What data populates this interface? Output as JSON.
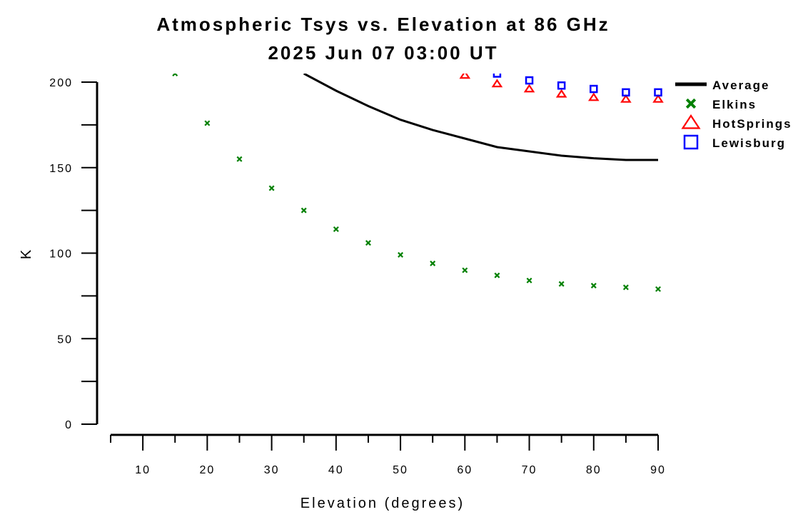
{
  "chart_data": {
    "type": "line",
    "title": "Atmospheric Tsys vs. Elevation at 86 GHz",
    "subtitle": "2025 Jun 07 03:00 UT",
    "xlabel": "Elevation (degrees)",
    "ylabel": "K",
    "xlim": [
      5,
      90
    ],
    "ylim": [
      0,
      200
    ],
    "x_ticks": [
      10,
      20,
      30,
      40,
      50,
      60,
      70,
      80,
      90
    ],
    "y_ticks": [
      0,
      50,
      100,
      150,
      200
    ],
    "grid": false,
    "legend_position": "right",
    "series": [
      {
        "name": "Average",
        "marker": "line",
        "color": "#000000",
        "x": [
          35,
          40,
          45,
          50,
          55,
          60,
          65,
          70,
          75,
          80,
          85,
          90
        ],
        "y": [
          205,
          195,
          186,
          178,
          172,
          167,
          162,
          159.5,
          157,
          155.5,
          154.5,
          154.5
        ]
      },
      {
        "name": "Elkins",
        "marker": "x",
        "color": "#008000",
        "x": [
          15,
          20,
          25,
          30,
          35,
          40,
          45,
          50,
          55,
          60,
          65,
          70,
          75,
          80,
          85,
          90
        ],
        "y": [
          205,
          176,
          155,
          138,
          125,
          114,
          106,
          99,
          94,
          90,
          87,
          84,
          82,
          81,
          80,
          79
        ]
      },
      {
        "name": "HotSprings",
        "marker": "triangle",
        "color": "#ff0000",
        "x": [
          60,
          65,
          70,
          75,
          80,
          85,
          90
        ],
        "y": [
          204,
          199,
          196,
          193,
          191,
          190,
          190
        ]
      },
      {
        "name": "Lewisburg",
        "marker": "square",
        "color": "#0000ff",
        "x": [
          65,
          70,
          75,
          80,
          85,
          90
        ],
        "y": [
          205,
          201,
          198,
          196,
          194,
          194
        ]
      }
    ]
  }
}
